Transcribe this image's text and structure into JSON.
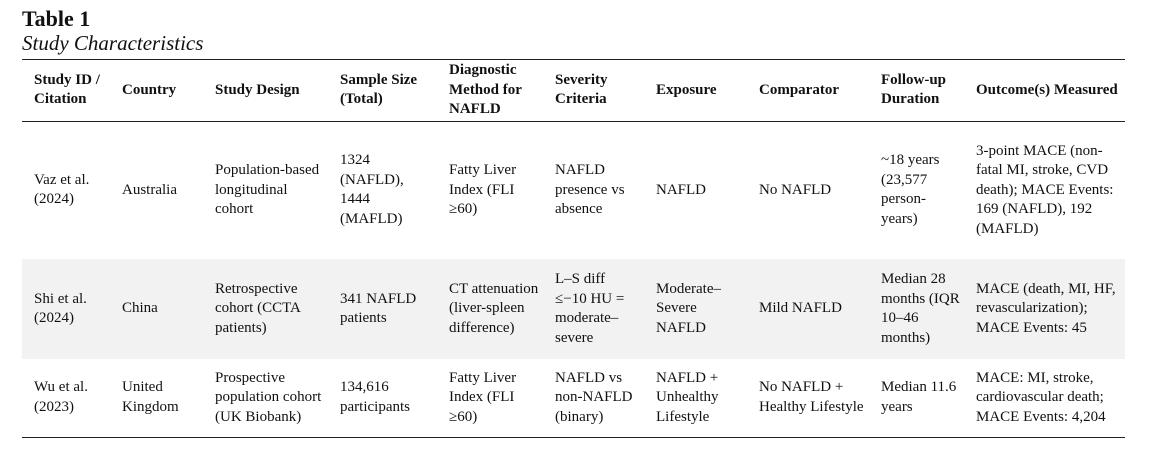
{
  "table_number": "Table 1",
  "table_title": "Study Characteristics",
  "headers": [
    "Study ID / Citation",
    "Country",
    "Study Design",
    "Sample Size (Total)",
    "Diagnostic Method for NAFLD",
    "Severity Criteria",
    "Exposure",
    "Comparator",
    "Follow-up Duration",
    "Outcome(s) Measured"
  ],
  "rows": [
    [
      "Vaz et al. (2024)",
      "Australia",
      "Population-based longitudinal cohort",
      "1324 (NAFLD), 1444 (MAFLD)",
      "Fatty Liver Index (FLI ≥60)",
      "NAFLD presence vs absence",
      "NAFLD",
      "No NAFLD",
      "~18 years (23,577 person-years)",
      "3-point MACE (non-fatal MI, stroke, CVD death); MACE Events: 169 (NAFLD), 192 (MAFLD)"
    ],
    [
      "Shi et al. (2024)",
      "China",
      "Retrospective cohort (CCTA patients)",
      "341 NAFLD patients",
      "CT attenuation (liver-spleen difference)",
      "L–S diff ≤−10 HU = moderate–severe",
      "Moderate–Severe NAFLD",
      "Mild NAFLD",
      "Median 28 months (IQR 10–46 months)",
      "MACE (death, MI, HF, revascularization); MACE Events: 45"
    ],
    [
      "Wu et al. (2023)",
      "United Kingdom",
      "Prospective population cohort (UK Biobank)",
      "134,616 participants",
      "Fatty Liver Index (FLI ≥60)",
      "NAFLD vs non-NAFLD (binary)",
      "NAFLD + Unhealthy Lifestyle",
      "No NAFLD + Healthy Lifestyle",
      "Median 11.6 years",
      "MACE: MI, stroke, cardiovascular death; MACE Events: 4,204"
    ]
  ]
}
